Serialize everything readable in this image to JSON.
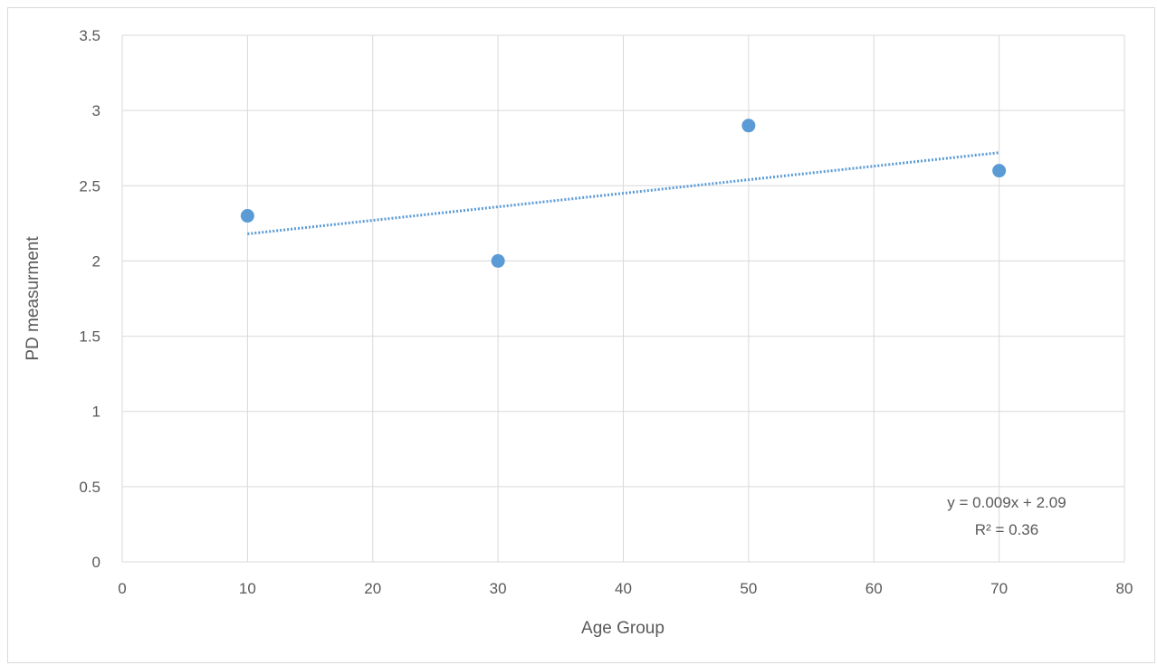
{
  "chart_data": {
    "type": "scatter",
    "title": "",
    "xlabel": "Age Group",
    "ylabel": "PD measurment",
    "xlim": [
      0,
      80
    ],
    "ylim": [
      0,
      3.5
    ],
    "x_ticks": [
      "0",
      "10",
      "20",
      "30",
      "40",
      "50",
      "60",
      "70",
      "80"
    ],
    "y_ticks": [
      "0",
      "0.5",
      "1",
      "1.5",
      "2",
      "2.5",
      "3",
      "3.5"
    ],
    "grid": true,
    "legend": "none",
    "series": [
      {
        "x": [
          10,
          30,
          50,
          70
        ],
        "y": [
          2.3,
          2.0,
          2.9,
          2.6
        ],
        "color": "#5b9bd5"
      }
    ],
    "trendline": {
      "type": "linear",
      "style": "dotted",
      "color": "#5b9bd5",
      "slope": 0.009,
      "intercept": 2.09,
      "x_range": [
        10,
        70
      ],
      "equation_label": "y = 0.009x + 2.09",
      "r2_label": "R² = 0.36"
    },
    "colors": {
      "grid": "#d9d9d9",
      "text": "#595959"
    }
  }
}
